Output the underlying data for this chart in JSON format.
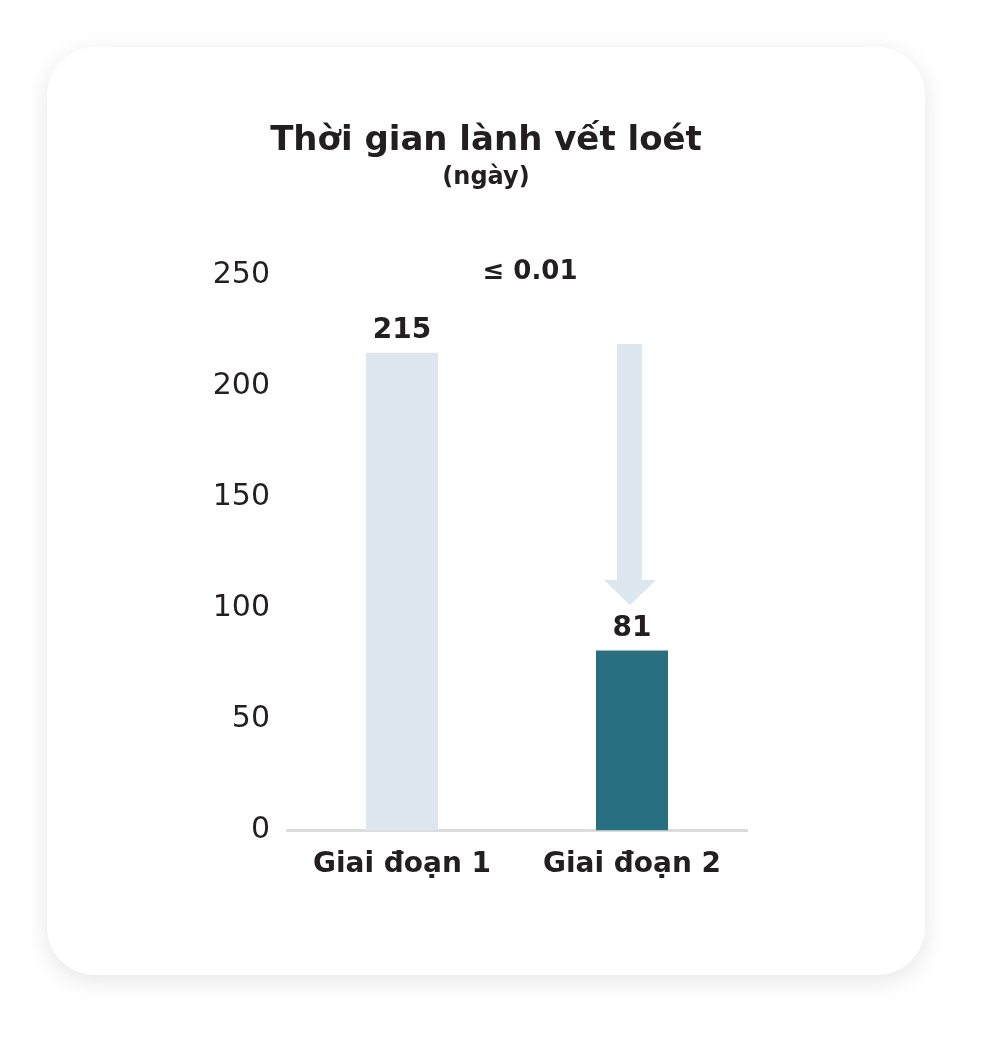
{
  "chart_data": {
    "type": "bar",
    "title": "Thời gian lành vết loét",
    "subtitle": "(ngày)",
    "categories": [
      "Giai đoạn 1",
      "Giai đoạn 2"
    ],
    "values": [
      215,
      81
    ],
    "colors": [
      "#dce7ef",
      "#287081"
    ],
    "ylim": [
      0,
      250
    ],
    "yticks": [
      0,
      50,
      100,
      150,
      200,
      250
    ],
    "data_labels": true,
    "legend": false,
    "grid": false,
    "annotations": [
      "≤ 0.01"
    ]
  }
}
